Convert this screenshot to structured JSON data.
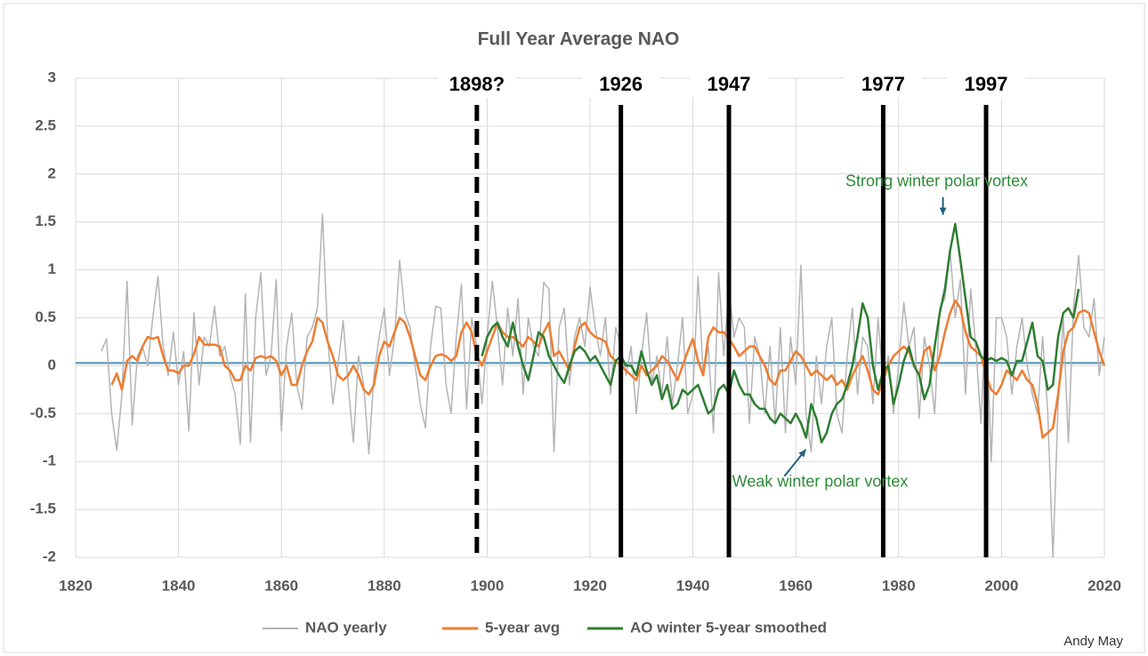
{
  "chart_data": {
    "type": "line",
    "title": "Full Year Average NAO",
    "x": [
      1825,
      1826,
      1827,
      1828,
      1829,
      1830,
      1831,
      1832,
      1833,
      1834,
      1835,
      1836,
      1837,
      1838,
      1839,
      1840,
      1841,
      1842,
      1843,
      1844,
      1845,
      1846,
      1847,
      1848,
      1849,
      1850,
      1851,
      1852,
      1853,
      1854,
      1855,
      1856,
      1857,
      1858,
      1859,
      1860,
      1861,
      1862,
      1863,
      1864,
      1865,
      1866,
      1867,
      1868,
      1869,
      1870,
      1871,
      1872,
      1873,
      1874,
      1875,
      1876,
      1877,
      1878,
      1879,
      1880,
      1881,
      1882,
      1883,
      1884,
      1885,
      1886,
      1887,
      1888,
      1889,
      1890,
      1891,
      1892,
      1893,
      1894,
      1895,
      1896,
      1897,
      1898,
      1899,
      1900,
      1901,
      1902,
      1903,
      1904,
      1905,
      1906,
      1907,
      1908,
      1909,
      1910,
      1911,
      1912,
      1913,
      1914,
      1915,
      1916,
      1917,
      1918,
      1919,
      1920,
      1921,
      1922,
      1923,
      1924,
      1925,
      1926,
      1927,
      1928,
      1929,
      1930,
      1931,
      1932,
      1933,
      1934,
      1935,
      1936,
      1937,
      1938,
      1939,
      1940,
      1941,
      1942,
      1943,
      1944,
      1945,
      1946,
      1947,
      1948,
      1949,
      1950,
      1951,
      1952,
      1953,
      1954,
      1955,
      1956,
      1957,
      1958,
      1959,
      1960,
      1961,
      1962,
      1963,
      1964,
      1965,
      1966,
      1967,
      1968,
      1969,
      1970,
      1971,
      1972,
      1973,
      1974,
      1975,
      1976,
      1977,
      1978,
      1979,
      1980,
      1981,
      1982,
      1983,
      1984,
      1985,
      1986,
      1987,
      1988,
      1989,
      1990,
      1991,
      1992,
      1993,
      1994,
      1995,
      1996,
      1997,
      1998,
      1999,
      2000,
      2001,
      2002,
      2003,
      2004,
      2005,
      2006,
      2007,
      2008,
      2009,
      2010,
      2011,
      2012,
      2013,
      2014,
      2015,
      2016,
      2017,
      2018,
      2019,
      2020
    ],
    "series": [
      {
        "name": "NAO yearly",
        "color": "#b4b4b4",
        "width": 1.5,
        "values": [
          0.15,
          0.28,
          -0.5,
          -0.88,
          -0.3,
          0.88,
          -0.62,
          0.1,
          0.2,
          0.0,
          0.5,
          0.93,
          0.2,
          -0.1,
          0.35,
          -0.2,
          0.15,
          -0.68,
          0.55,
          -0.2,
          0.3,
          0.2,
          0.62,
          0.1,
          0.2,
          -0.1,
          -0.3,
          -0.82,
          0.75,
          -0.8,
          0.5,
          0.97,
          -0.1,
          0.1,
          0.9,
          -0.68,
          0.2,
          0.55,
          -0.2,
          -0.45,
          0.3,
          0.4,
          0.6,
          1.58,
          0.3,
          -0.4,
          0.0,
          0.47,
          -0.2,
          -0.8,
          0.1,
          -0.2,
          -0.92,
          -0.1,
          0.3,
          0.6,
          -0.1,
          0.3,
          1.1,
          0.55,
          0.4,
          0.0,
          -0.4,
          -0.65,
          0.2,
          0.62,
          0.6,
          -0.2,
          -0.5,
          0.3,
          0.85,
          -0.45,
          0.5,
          0.2,
          -0.4,
          0.3,
          0.88,
          0.4,
          -0.2,
          0.6,
          0.1,
          0.7,
          -0.3,
          0.5,
          0.2,
          0.1,
          0.87,
          0.8,
          -0.9,
          0.4,
          0.6,
          -0.2,
          0.3,
          0.5,
          0.2,
          0.82,
          0.4,
          0.1,
          0.5,
          -0.3,
          0.4,
          0.2,
          -0.1,
          0.2,
          -0.5,
          0.1,
          0.55,
          -0.2,
          0.1,
          -0.3,
          0.3,
          -0.4,
          0.0,
          0.5,
          -0.5,
          -0.3,
          0.93,
          -0.1,
          0.2,
          -0.7,
          0.97,
          0.1,
          0.8,
          0.3,
          0.5,
          0.4,
          -0.6,
          0.3,
          0.1,
          -0.5,
          0.2,
          -0.6,
          0.4,
          -0.7,
          0.3,
          -0.2,
          1.05,
          -0.5,
          -0.9,
          0.1,
          -0.4,
          0.2,
          0.5,
          -0.5,
          -0.7,
          0.1,
          0.6,
          -0.3,
          0.3,
          0.2,
          -0.4,
          0.5,
          -0.2,
          0.1,
          -0.5,
          0.0,
          0.66,
          0.2,
          0.4,
          -0.55,
          0.3,
          0.0,
          -0.5,
          0.6,
          0.7,
          1.2,
          0.5,
          0.9,
          -0.3,
          0.8,
          0.2,
          -0.6,
          0.6,
          -1.0,
          0.5,
          0.5,
          0.3,
          -0.3,
          0.2,
          0.5,
          0.0,
          -0.3,
          -0.5,
          0.3,
          -0.5,
          -2.0,
          -0.4,
          0.5,
          -0.8,
          0.6,
          1.15,
          0.4,
          0.3,
          0.7,
          -0.1,
          0.3
        ]
      },
      {
        "name": "5-year avg",
        "color": "#ed7d31",
        "width": 2.5,
        "values": [
          null,
          null,
          -0.2,
          -0.08,
          -0.25,
          0.05,
          0.1,
          0.05,
          0.2,
          0.3,
          0.28,
          0.3,
          0.1,
          -0.05,
          -0.05,
          -0.08,
          0.0,
          0.0,
          0.12,
          0.3,
          0.22,
          0.22,
          0.22,
          0.2,
          0.0,
          -0.05,
          -0.15,
          -0.15,
          0.0,
          -0.05,
          0.08,
          0.1,
          0.08,
          0.1,
          0.05,
          -0.1,
          0.0,
          -0.2,
          -0.2,
          0.0,
          0.15,
          0.25,
          0.5,
          0.45,
          0.25,
          0.1,
          -0.1,
          -0.15,
          -0.1,
          0.0,
          -0.1,
          -0.25,
          -0.3,
          -0.2,
          0.1,
          0.25,
          0.2,
          0.35,
          0.5,
          0.45,
          0.3,
          0.1,
          -0.1,
          -0.15,
          0.0,
          0.1,
          0.12,
          0.1,
          0.05,
          0.1,
          0.35,
          0.45,
          0.35,
          0.1,
          0.0,
          0.15,
          0.3,
          0.45,
          0.35,
          0.3,
          0.3,
          0.25,
          0.2,
          0.3,
          0.25,
          0.2,
          0.35,
          0.45,
          0.1,
          0.15,
          0.05,
          -0.05,
          0.2,
          0.4,
          0.45,
          0.35,
          0.3,
          0.28,
          0.25,
          0.1,
          0.05,
          0.0,
          -0.05,
          -0.1,
          -0.15,
          0.0,
          -0.1,
          -0.05,
          0.0,
          0.1,
          0.05,
          -0.05,
          -0.15,
          0.0,
          0.15,
          0.28,
          0.05,
          -0.1,
          0.3,
          0.4,
          0.35,
          0.35,
          0.28,
          0.2,
          0.1,
          0.15,
          0.2,
          0.2,
          0.1,
          0.0,
          -0.15,
          -0.2,
          -0.05,
          -0.05,
          0.05,
          0.15,
          0.1,
          0.0,
          -0.1,
          -0.05,
          -0.1,
          -0.15,
          -0.1,
          -0.2,
          -0.15,
          -0.25,
          -0.1,
          0.0,
          0.1,
          -0.05,
          -0.25,
          -0.3,
          -0.15,
          0.0,
          0.1,
          0.15,
          0.2,
          0.15,
          0.0,
          -0.1,
          0.15,
          0.2,
          -0.05,
          0.1,
          0.35,
          0.55,
          0.68,
          0.6,
          0.35,
          0.2,
          0.15,
          0.1,
          -0.1,
          -0.25,
          -0.3,
          -0.2,
          -0.05,
          -0.1,
          -0.15,
          -0.05,
          -0.15,
          -0.2,
          -0.4,
          -0.75,
          -0.7,
          -0.65,
          -0.3,
          0.15,
          0.35,
          0.4,
          0.55,
          0.58,
          0.55,
          0.35,
          0.15,
          0.0
        ]
      },
      {
        "name": "AO winter 5-year smoothed",
        "color": "#2e7d32",
        "width": 2.5,
        "values": [
          null,
          null,
          null,
          null,
          null,
          null,
          null,
          null,
          null,
          null,
          null,
          null,
          null,
          null,
          null,
          null,
          null,
          null,
          null,
          null,
          null,
          null,
          null,
          null,
          null,
          null,
          null,
          null,
          null,
          null,
          null,
          null,
          null,
          null,
          null,
          null,
          null,
          null,
          null,
          null,
          null,
          null,
          null,
          null,
          null,
          null,
          null,
          null,
          null,
          null,
          null,
          null,
          null,
          null,
          null,
          null,
          null,
          null,
          null,
          null,
          null,
          null,
          null,
          null,
          null,
          null,
          null,
          null,
          null,
          null,
          null,
          null,
          null,
          null,
          0.1,
          0.3,
          0.4,
          0.45,
          0.3,
          0.2,
          0.45,
          0.2,
          0.0,
          -0.15,
          0.1,
          0.35,
          0.3,
          0.1,
          0.0,
          -0.1,
          -0.18,
          0.0,
          0.15,
          0.2,
          0.15,
          0.05,
          0.1,
          0.0,
          -0.1,
          -0.2,
          0.05,
          0.1,
          0.0,
          0.0,
          -0.1,
          0.15,
          -0.05,
          -0.2,
          -0.1,
          -0.35,
          -0.2,
          -0.45,
          -0.4,
          -0.25,
          -0.3,
          -0.25,
          -0.2,
          -0.35,
          -0.5,
          -0.45,
          -0.25,
          -0.2,
          -0.3,
          -0.05,
          -0.2,
          -0.3,
          -0.3,
          -0.4,
          -0.45,
          -0.45,
          -0.55,
          -0.6,
          -0.5,
          -0.55,
          -0.6,
          -0.5,
          -0.6,
          -0.75,
          -0.4,
          -0.55,
          -0.8,
          -0.7,
          -0.5,
          -0.4,
          -0.35,
          -0.2,
          0.0,
          0.3,
          0.65,
          0.5,
          0.0,
          -0.25,
          -0.05,
          0.0,
          -0.4,
          -0.2,
          0.05,
          0.2,
          0.0,
          -0.1,
          -0.35,
          -0.2,
          0.2,
          0.55,
          0.8,
          1.2,
          1.48,
          1.1,
          0.7,
          0.3,
          0.25,
          0.1,
          0.05,
          0.08,
          0.05,
          0.08,
          0.05,
          -0.1,
          0.05,
          0.05,
          0.25,
          0.45,
          0.1,
          0.05,
          -0.25,
          -0.2,
          0.3,
          0.55,
          0.6,
          0.5,
          0.8,
          null,
          null,
          null,
          null,
          null
        ]
      }
    ],
    "xlim": [
      1820,
      2020
    ],
    "xticks": [
      1820,
      1840,
      1860,
      1880,
      1900,
      1920,
      1940,
      1960,
      1980,
      2000,
      2020
    ],
    "ylim": [
      -2,
      3
    ],
    "yticks": [
      -2,
      -1.5,
      -1,
      -0.5,
      0,
      0.5,
      1,
      1.5,
      2,
      2.5,
      3
    ],
    "grid": true,
    "baseline": {
      "value": 0,
      "color": "#4a90b0"
    },
    "vlines": [
      {
        "x": 1898,
        "label": "1898?",
        "dashed": true
      },
      {
        "x": 1926,
        "label": "1926",
        "dashed": false
      },
      {
        "x": 1947,
        "label": "1947",
        "dashed": false
      },
      {
        "x": 1977,
        "label": "1977",
        "dashed": false
      },
      {
        "x": 1997,
        "label": "1997",
        "dashed": false
      }
    ],
    "annotations": [
      {
        "text": "Strong winter polar vortex",
        "x": 1990,
        "y": 1.5,
        "color": "#2e8b3a"
      },
      {
        "text": "Weak winter polar vortex",
        "x": 1963,
        "y": -0.8,
        "color": "#2e8b3a"
      }
    ],
    "credit": "Andy May"
  }
}
